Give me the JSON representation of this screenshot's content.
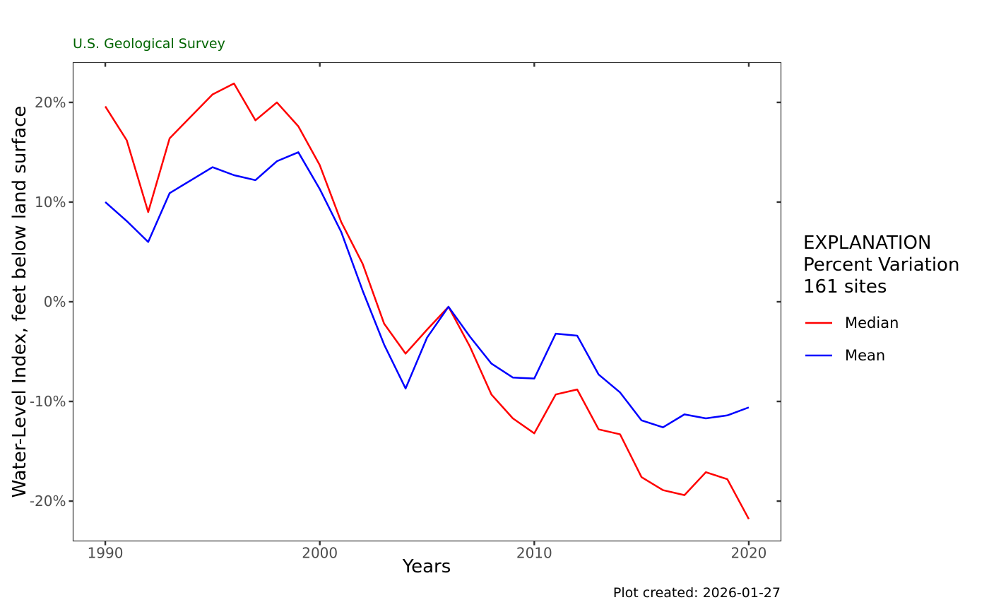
{
  "chart_data": {
    "type": "line",
    "subtitle": "U.S. Geological Survey",
    "xlabel": "Years",
    "ylabel": "Water-Level Index, feet below land surface",
    "caption": "Plot created: 2026-01-27",
    "xlim": [
      1988.5,
      2021.5
    ],
    "ylim": [
      -24,
      24
    ],
    "x_ticks": [
      1990,
      2000,
      2010,
      2020
    ],
    "y_ticks": [
      -20,
      -10,
      0,
      10,
      20
    ],
    "y_tick_labels": [
      "-20%",
      "-10%",
      "0%",
      "10%",
      "20%"
    ],
    "legend": {
      "title_lines": [
        "EXPLANATION",
        "Percent Variation",
        "161 sites"
      ],
      "placement": "right"
    },
    "grid": false,
    "x": [
      1990,
      1991,
      1992,
      1993,
      1994,
      1995,
      1996,
      1997,
      1998,
      1999,
      2000,
      2001,
      2002,
      2003,
      2004,
      2005,
      2006,
      2007,
      2008,
      2009,
      2010,
      2011,
      2012,
      2013,
      2014,
      2015,
      2016,
      2017,
      2018,
      2019,
      2020
    ],
    "series": [
      {
        "name": "Median",
        "color": "#ff0000",
        "values": [
          19.6,
          16.2,
          9.0,
          16.4,
          18.6,
          20.8,
          21.9,
          18.2,
          20.0,
          17.6,
          13.7,
          8.0,
          3.8,
          -2.2,
          -5.2,
          -2.8,
          -0.5,
          -4.5,
          -9.3,
          -11.7,
          -13.2,
          -9.3,
          -8.8,
          -12.8,
          -13.3,
          -17.6,
          -18.9,
          -19.4,
          -17.1,
          -17.8,
          -21.8
        ]
      },
      {
        "name": "Mean",
        "color": "#0000ff",
        "values": [
          10.0,
          8.1,
          6.0,
          10.9,
          12.2,
          13.5,
          12.7,
          12.2,
          14.1,
          15.0,
          11.3,
          7.0,
          1.1,
          -4.3,
          -8.7,
          -3.6,
          -0.5,
          -3.5,
          -6.2,
          -7.6,
          -7.7,
          -3.2,
          -3.4,
          -7.3,
          -9.1,
          -11.9,
          -12.6,
          -11.3,
          -11.7,
          -11.4,
          -10.6
        ]
      }
    ]
  }
}
